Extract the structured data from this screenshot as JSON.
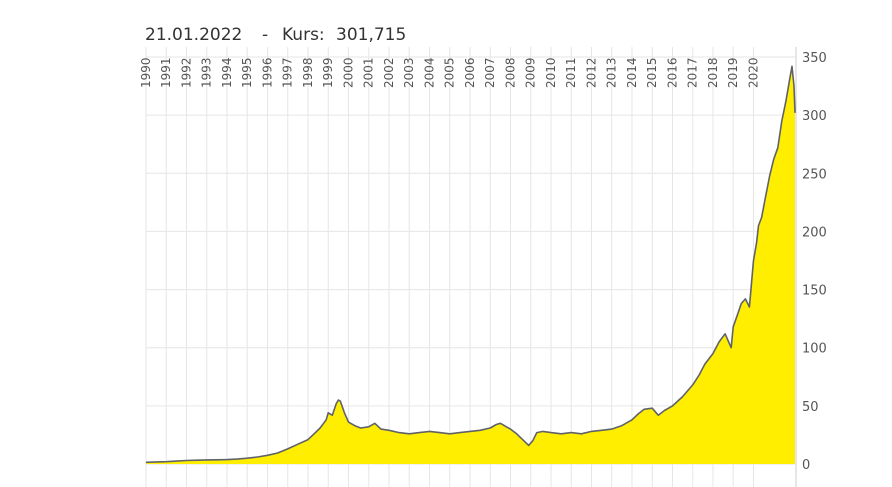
{
  "header": {
    "date": "21.01.2022",
    "separator": "-",
    "price_label": "Kurs:",
    "price_value": "301,715"
  },
  "colors": {
    "area_fill": "#ffee00",
    "line": "#5f6368",
    "grid": "#e6e6e6",
    "axis_text": "#555555"
  },
  "chart_data": {
    "type": "area",
    "title": "",
    "xlabel": "",
    "ylabel": "",
    "grid": true,
    "y_axis_position": "right",
    "x_tick_orientation": "vertical",
    "xlim": [
      1990,
      2022.1
    ],
    "ylim": [
      0,
      350
    ],
    "y_ticks": [
      0,
      50,
      100,
      150,
      200,
      250,
      300,
      350
    ],
    "x_tick_labels": [
      "1990",
      "1991",
      "1992",
      "1993",
      "1994",
      "1995",
      "1996",
      "1997",
      "1998",
      "1999",
      "2000",
      "2001",
      "2002",
      "2003",
      "2004",
      "2005",
      "2006",
      "2007",
      "2008",
      "2009",
      "2010",
      "2011",
      "2012",
      "2013",
      "2014",
      "2015",
      "2016",
      "2017",
      "2018",
      "2019",
      "2020"
    ],
    "series": [
      {
        "x": [
          1990.0,
          1990.5,
          1991.0,
          1991.5,
          1992.0,
          1992.5,
          1993.0,
          1993.5,
          1994.0,
          1994.5,
          1995.0,
          1995.5,
          1996.0,
          1996.5,
          1997.0,
          1997.5,
          1998.0,
          1998.3,
          1998.6,
          1998.9,
          1999.0,
          1999.2,
          1999.4,
          1999.5,
          1999.6,
          1999.8,
          2000.0,
          2000.3,
          2000.6,
          2001.0,
          2001.3,
          2001.6,
          2002.0,
          2002.5,
          2003.0,
          2003.5,
          2004.0,
          2004.5,
          2005.0,
          2005.5,
          2006.0,
          2006.5,
          2007.0,
          2007.3,
          2007.5,
          2007.8,
          2008.0,
          2008.3,
          2008.6,
          2008.9,
          2009.1,
          2009.3,
          2009.6,
          2010.0,
          2010.5,
          2011.0,
          2011.5,
          2012.0,
          2012.5,
          2013.0,
          2013.5,
          2014.0,
          2014.3,
          2014.6,
          2015.0,
          2015.3,
          2015.6,
          2016.0,
          2016.5,
          2017.0,
          2017.3,
          2017.6,
          2018.0,
          2018.3,
          2018.6,
          2018.9,
          2019.0,
          2019.2,
          2019.4,
          2019.6,
          2019.8,
          2020.0,
          2020.15,
          2020.25,
          2020.4,
          2020.6,
          2020.8,
          2021.0,
          2021.2,
          2021.4,
          2021.6,
          2021.8,
          2021.9,
          2022.0,
          2022.05
        ],
        "y": [
          1.5,
          1.8,
          2,
          2.5,
          3,
          3.3,
          3.5,
          3.6,
          3.8,
          4.2,
          5,
          6,
          7.5,
          9.5,
          13,
          17,
          21,
          26,
          31,
          38,
          44,
          42,
          52,
          55,
          54,
          44,
          36,
          33,
          31,
          32,
          35,
          30,
          29,
          27,
          26,
          27,
          28,
          27,
          26,
          27,
          28,
          29,
          31,
          34,
          35,
          32,
          30,
          26,
          21,
          16,
          20,
          27,
          28,
          27,
          26,
          27,
          26,
          28,
          29,
          30,
          33,
          38,
          43,
          47,
          48,
          42,
          46,
          50,
          58,
          68,
          76,
          86,
          95,
          105,
          112,
          100,
          118,
          128,
          138,
          142,
          135,
          175,
          190,
          205,
          212,
          230,
          248,
          262,
          272,
          295,
          312,
          332,
          342,
          325,
          302
        ]
      }
    ]
  }
}
